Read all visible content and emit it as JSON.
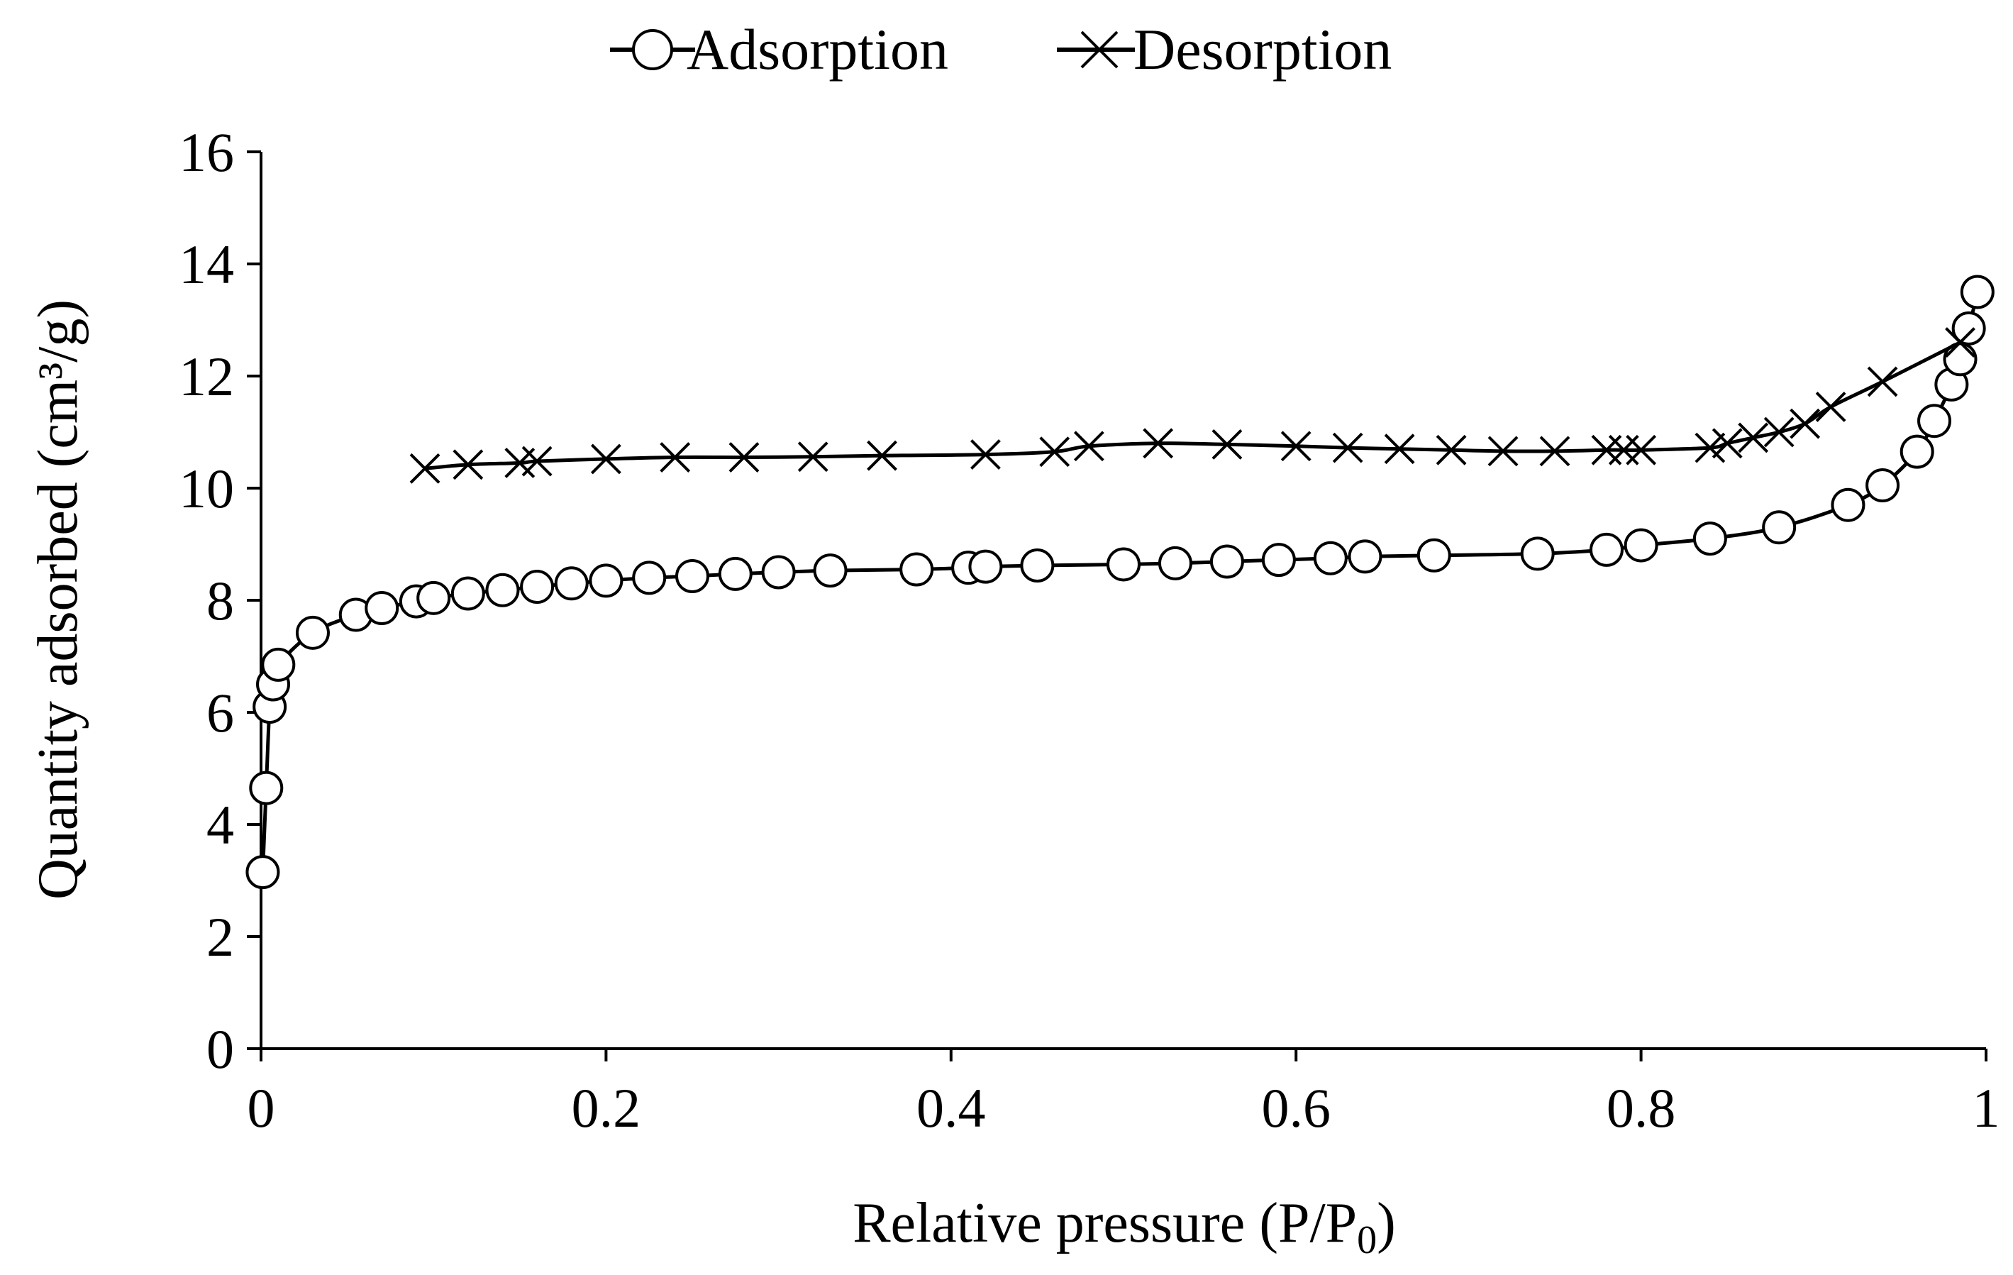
{
  "chart_data": {
    "type": "line",
    "title": "",
    "xlabel_main": "Relative pressure (P/P",
    "xlabel_sub": "0",
    "xlabel_close": ")",
    "ylabel": "Quantity adsorbed (cm³/g)",
    "xlim": [
      0,
      1
    ],
    "ylim": [
      0,
      16
    ],
    "x_ticks": [
      0,
      0.2,
      0.4,
      0.6,
      0.8,
      1
    ],
    "x_tick_labels": [
      "0",
      "0.2",
      "0.4",
      "0.6",
      "0.8",
      "1"
    ],
    "y_ticks": [
      0,
      2,
      4,
      6,
      8,
      10,
      12,
      14,
      16
    ],
    "y_tick_labels": [
      "0",
      "2",
      "4",
      "6",
      "8",
      "10",
      "12",
      "14",
      "16"
    ],
    "grid": false,
    "legend_position": "top-center",
    "series": [
      {
        "name": "Adsorption",
        "marker": "circle",
        "color": "#000000",
        "x": [
          0.001,
          0.003,
          0.005,
          0.007,
          0.01,
          0.03,
          0.055,
          0.07,
          0.09,
          0.1,
          0.12,
          0.14,
          0.16,
          0.18,
          0.2,
          0.225,
          0.25,
          0.275,
          0.3,
          0.33,
          0.38,
          0.41,
          0.42,
          0.45,
          0.5,
          0.53,
          0.56,
          0.59,
          0.62,
          0.64,
          0.68,
          0.74,
          0.78,
          0.8,
          0.84,
          0.88,
          0.92,
          0.94,
          0.96,
          0.97,
          0.98,
          0.985,
          0.99,
          0.995
        ],
        "y": [
          3.15,
          4.65,
          6.1,
          6.5,
          6.85,
          7.42,
          7.74,
          7.86,
          7.98,
          8.04,
          8.12,
          8.18,
          8.24,
          8.3,
          8.35,
          8.4,
          8.43,
          8.47,
          8.5,
          8.53,
          8.55,
          8.58,
          8.6,
          8.62,
          8.64,
          8.66,
          8.69,
          8.72,
          8.75,
          8.78,
          8.8,
          8.83,
          8.9,
          8.98,
          9.1,
          9.3,
          9.7,
          10.05,
          10.65,
          11.2,
          11.85,
          12.3,
          12.85,
          13.5
        ]
      },
      {
        "name": "Desorption",
        "marker": "x",
        "color": "#000000",
        "x": [
          0.985,
          0.94,
          0.91,
          0.895,
          0.88,
          0.865,
          0.85,
          0.84,
          0.8,
          0.79,
          0.78,
          0.75,
          0.72,
          0.69,
          0.66,
          0.63,
          0.6,
          0.56,
          0.52,
          0.48,
          0.46,
          0.42,
          0.36,
          0.32,
          0.28,
          0.24,
          0.2,
          0.16,
          0.15,
          0.12,
          0.095
        ],
        "y": [
          12.6,
          11.9,
          11.45,
          11.15,
          11.0,
          10.9,
          10.8,
          10.72,
          10.68,
          10.68,
          10.68,
          10.66,
          10.66,
          10.68,
          10.7,
          10.72,
          10.75,
          10.78,
          10.8,
          10.75,
          10.65,
          10.6,
          10.58,
          10.56,
          10.55,
          10.55,
          10.52,
          10.48,
          10.45,
          10.42,
          10.35
        ]
      }
    ]
  }
}
